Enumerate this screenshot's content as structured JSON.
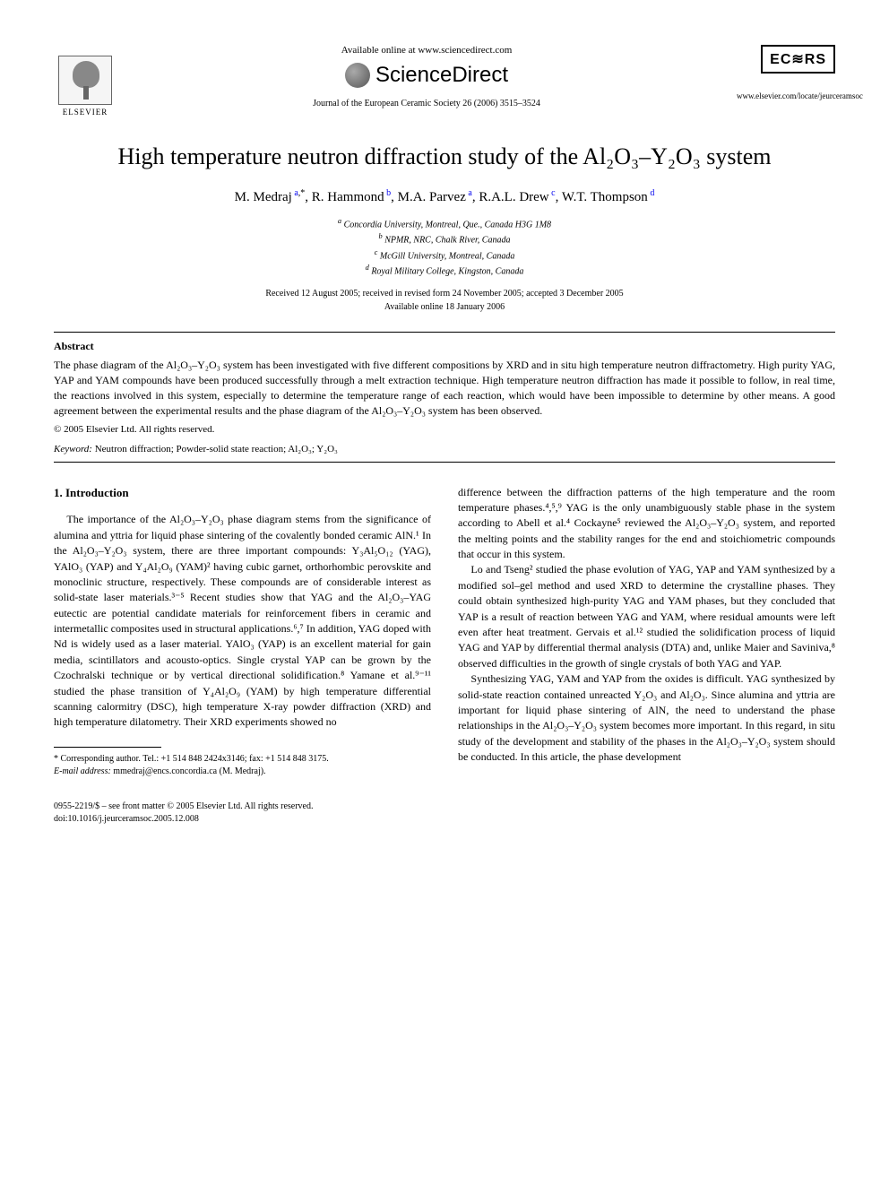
{
  "header": {
    "available_online": "Available online at www.sciencedirect.com",
    "sciencedirect": "ScienceDirect",
    "elsevier": "ELSEVIER",
    "journal_ref": "Journal of the European Ceramic Society 26 (2006) 3515–3524",
    "ecers": "EC≋RS",
    "locate_url": "www.elsevier.com/locate/jeurceramsoc"
  },
  "title": "High temperature neutron diffraction study of the Al₂O₃–Y₂O₃ system",
  "authors_html": "M. Medraj <sup>a,</sup>*, R. Hammond <sup>b</sup>, M.A. Parvez <sup>a</sup>, R.A.L. Drew <sup>c</sup>, W.T. Thompson <sup>d</sup>",
  "authors": [
    {
      "name": "M. Medraj",
      "marks": "a,*"
    },
    {
      "name": "R. Hammond",
      "marks": "b"
    },
    {
      "name": "M.A. Parvez",
      "marks": "a"
    },
    {
      "name": "R.A.L. Drew",
      "marks": "c"
    },
    {
      "name": "W.T. Thompson",
      "marks": "d"
    }
  ],
  "affiliations": {
    "a": "Concordia University, Montreal, Que., Canada H3G 1M8",
    "b": "NPMR, NRC, Chalk River, Canada",
    "c": "McGill University, Montreal, Canada",
    "d": "Royal Military College, Kingston, Canada"
  },
  "dates": {
    "received": "Received 12 August 2005; received in revised form 24 November 2005; accepted 3 December 2005",
    "available": "Available online 18 January 2006"
  },
  "abstract": {
    "heading": "Abstract",
    "body": "The phase diagram of the Al₂O₃–Y₂O₃ system has been investigated with five different compositions by XRD and in situ high temperature neutron diffractometry. High purity YAG, YAP and YAM compounds have been produced successfully through a melt extraction technique. High temperature neutron diffraction has made it possible to follow, in real time, the reactions involved in this system, especially to determine the temperature range of each reaction, which would have been impossible to determine by other means. A good agreement between the experimental results and the phase diagram of the Al₂O₃–Y₂O₃ system has been observed.",
    "copyright": "© 2005 Elsevier Ltd. All rights reserved."
  },
  "keywords": {
    "label": "Keyword:",
    "text": "Neutron diffraction; Powder-solid state reaction; Al₂O₃; Y₂O₃"
  },
  "section1": {
    "heading": "1. Introduction",
    "col1_p1": "The importance of the Al₂O₃–Y₂O₃ phase diagram stems from the significance of alumina and yttria for liquid phase sintering of the covalently bonded ceramic AlN.¹ In the Al₂O₃–Y₂O₃ system, there are three important compounds: Y₃Al₅O₁₂ (YAG), YAlO₃ (YAP) and Y₄Al₂O₉ (YAM)² having cubic garnet, orthorhombic perovskite and monoclinic structure, respectively. These compounds are of considerable interest as solid-state laser materials.³⁻⁵ Recent studies show that YAG and the Al₂O₃–YAG eutectic are potential candidate materials for reinforcement fibers in ceramic and intermetallic composites used in structural applications.⁶,⁷ In addition, YAG doped with Nd is widely used as a laser material. YAlO₃ (YAP) is an excellent material for gain media, scintillators and acousto-optics. Single crystal YAP can be grown by the Czochralski technique or by vertical directional solidification.⁸ Yamane et al.⁹⁻¹¹ studied the phase transition of Y₄Al₂O₉ (YAM) by high temperature differential scanning calormitry (DSC), high temperature X-ray powder diffraction (XRD) and high temperature dilatometry. Their XRD experiments showed no",
    "col2_p1": "difference between the diffraction patterns of the high temperature and the room temperature phases.⁴,⁵,⁹ YAG is the only unambiguously stable phase in the system according to Abell et al.⁴ Cockayne⁵ reviewed the Al₂O₃–Y₂O₃ system, and reported the melting points and the stability ranges for the end and stoichiometric compounds that occur in this system.",
    "col2_p2": "Lo and Tseng² studied the phase evolution of YAG, YAP and YAM synthesized by a modified sol–gel method and used XRD to determine the crystalline phases. They could obtain synthesized high-purity YAG and YAM phases, but they concluded that YAP is a result of reaction between YAG and YAM, where residual amounts were left even after heat treatment. Gervais et al.¹² studied the solidification process of liquid YAG and YAP by differential thermal analysis (DTA) and, unlike Maier and Saviniva,⁸ observed difficulties in the growth of single crystals of both YAG and YAP.",
    "col2_p3": "Synthesizing YAG, YAM and YAP from the oxides is difficult. YAG synthesized by solid-state reaction contained unreacted Y₂O₃ and Al₂O₃. Since alumina and yttria are important for liquid phase sintering of AlN, the need to understand the phase relationships in the Al₂O₃–Y₂O₃ system becomes more important. In this regard, in situ study of the development and stability of the phases in the Al₂O₃–Y₂O₃ system should be conducted. In this article, the phase development"
  },
  "footnote": {
    "corr": "* Corresponding author. Tel.: +1 514 848 2424x3146; fax: +1 514 848 3175.",
    "email_label": "E-mail address:",
    "email": "mmedraj@encs.concordia.ca (M. Medraj)."
  },
  "bottom": {
    "issn": "0955-2219/$ – see front matter © 2005 Elsevier Ltd. All rights reserved.",
    "doi": "doi:10.1016/j.jeurceramsoc.2005.12.008"
  },
  "colors": {
    "text": "#000000",
    "link": "#0000ee",
    "background": "#ffffff",
    "rule": "#000000"
  },
  "fonts": {
    "body_family": "Georgia, Times New Roman, serif",
    "title_size_pt": 20,
    "body_size_pt": 9,
    "abstract_size_pt": 9,
    "footnote_size_pt": 7.5
  }
}
